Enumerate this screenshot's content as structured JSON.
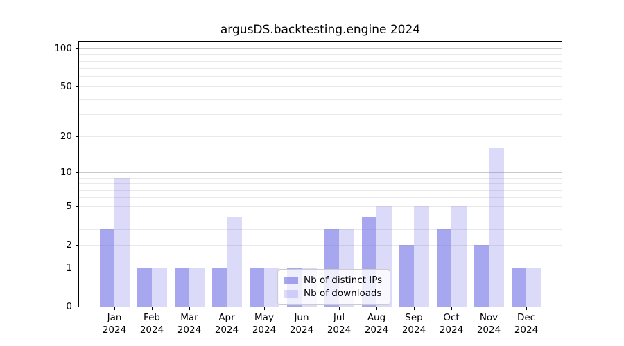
{
  "chart_data": {
    "type": "bar",
    "title": "argusDS.backtesting.engine 2024",
    "months": [
      "Jan",
      "Feb",
      "Mar",
      "Apr",
      "May",
      "Jun",
      "Jul",
      "Aug",
      "Sep",
      "Oct",
      "Nov",
      "Dec"
    ],
    "year": "2024",
    "categories": [
      "Jan 2024",
      "Feb 2024",
      "Mar 2024",
      "Apr 2024",
      "May 2024",
      "Jun 2024",
      "Jul 2024",
      "Aug 2024",
      "Sep 2024",
      "Oct 2024",
      "Nov 2024",
      "Dec 2024"
    ],
    "series": [
      {
        "name": "Nb of distinct IPs",
        "key": "distinct-ips",
        "values": [
          3,
          1,
          1,
          1,
          1,
          1,
          3,
          4,
          2,
          3,
          2,
          1
        ],
        "color": "rgba(113,113,230,0.62)"
      },
      {
        "name": "Nb of downloads",
        "key": "downloads",
        "values": [
          9,
          1,
          1,
          4,
          1,
          1,
          3,
          5,
          5,
          5,
          16,
          1
        ],
        "color": "rgba(113,113,230,0.25)"
      }
    ],
    "yscale": "log1p",
    "ylim": [
      0,
      114
    ],
    "ytick_labels": [
      100,
      50,
      20,
      10,
      5,
      2,
      1,
      0
    ],
    "grid_major_values": [
      1,
      10,
      100
    ],
    "grid_minor_values": [
      2,
      3,
      4,
      5,
      6,
      7,
      8,
      9,
      20,
      30,
      40,
      50,
      60,
      70,
      80,
      90
    ],
    "grid": "both",
    "legend_position": "lower center",
    "colors": {
      "axis": "#000000",
      "grid_major": "#c9c9c9",
      "grid_minor": "#e9e9e9",
      "background": "#ffffff"
    }
  }
}
